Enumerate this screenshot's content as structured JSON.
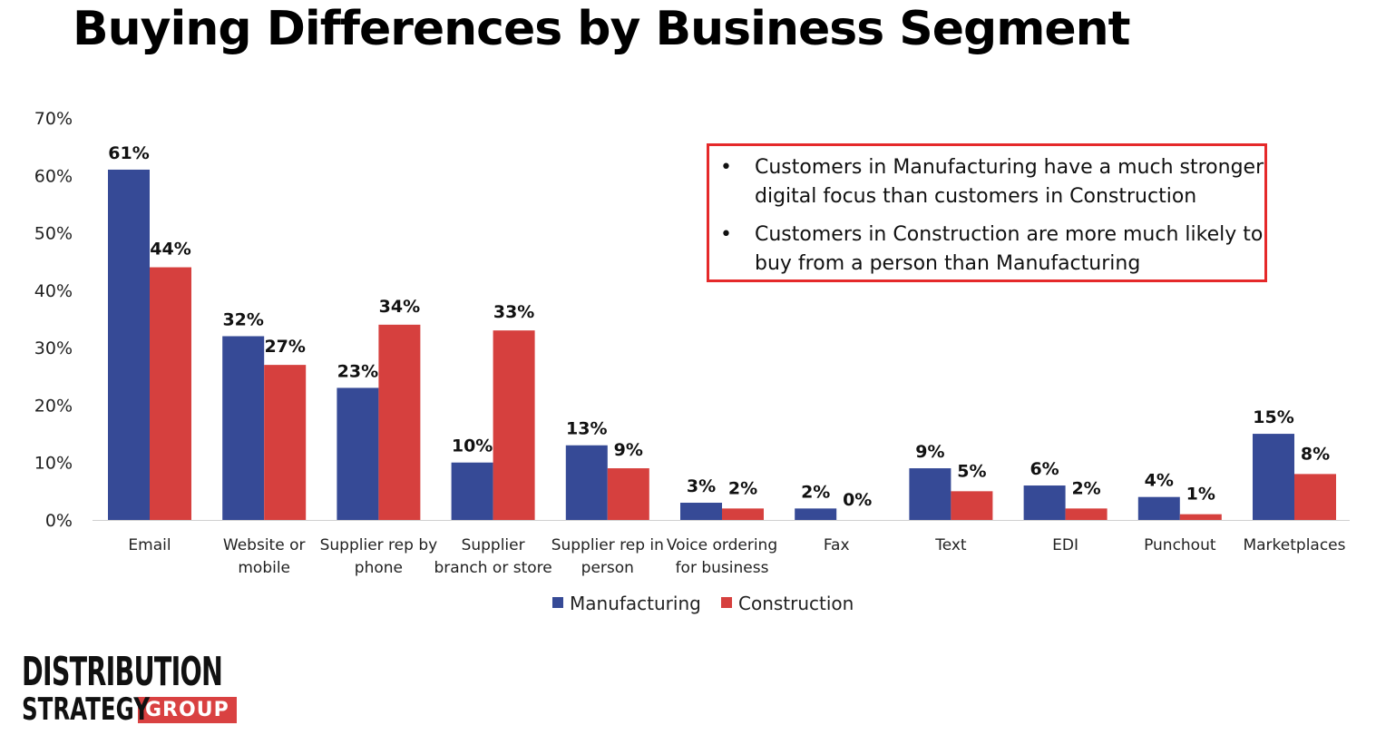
{
  "title": "Buying Differences by Business Segment",
  "callout": [
    "Customers in Manufacturing have a much stronger digital focus than customers in Construction",
    "Customers in Construction are more much likely to buy from a person than Manufacturing"
  ],
  "logo": {
    "line1": "DISTRIBUTION",
    "line2": "STRATEGY",
    "badge": "GROUP"
  },
  "chart_data": {
    "type": "bar",
    "title": "",
    "xlabel": "",
    "ylabel": "",
    "ylim": [
      0,
      70
    ],
    "yticks": [
      "0%",
      "10%",
      "20%",
      "30%",
      "40%",
      "50%",
      "60%",
      "70%"
    ],
    "grid": false,
    "legend": "bottom",
    "categories": [
      [
        "Email"
      ],
      [
        "Website or",
        "mobile"
      ],
      [
        "Supplier rep by",
        "phone"
      ],
      [
        "Supplier",
        "branch or store"
      ],
      [
        "Supplier rep in",
        "person"
      ],
      [
        "Voice ordering",
        "for business"
      ],
      [
        "Fax"
      ],
      [
        "Text"
      ],
      [
        "EDI"
      ],
      [
        "Punchout"
      ],
      [
        "Marketplaces"
      ]
    ],
    "series": [
      {
        "name": "Manufacturing",
        "color": "#364a96",
        "values": [
          61,
          32,
          23,
          10,
          13,
          3,
          2,
          9,
          6,
          4,
          15
        ]
      },
      {
        "name": "Construction",
        "color": "#d6403e",
        "values": [
          44,
          27,
          34,
          33,
          9,
          2,
          0,
          5,
          2,
          1,
          8
        ]
      }
    ]
  }
}
